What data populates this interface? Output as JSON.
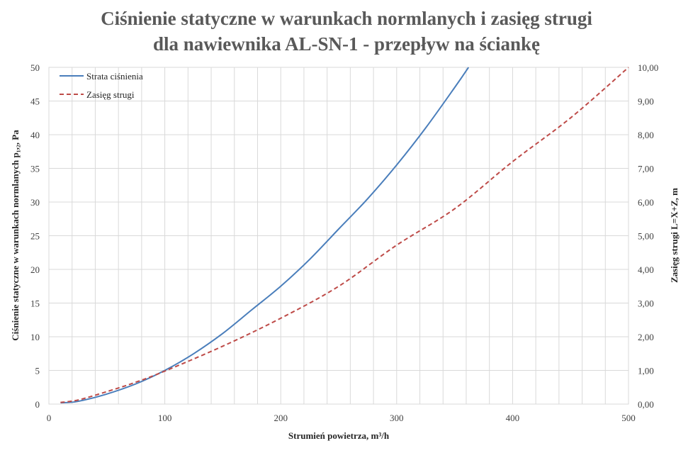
{
  "chart_data": {
    "type": "line",
    "title_line1": "Ciśnienie statyczne w warunkach  normlanych  i zasięg strugi",
    "title_line2": "dla nawiewnika  AL-SN-1 - przepływ  na ściankę",
    "xlabel": "Strumień  powietrza,  m³/h",
    "ylabel_left": "Ciśnienie statyczne w warunkach  normlanych  p₁,₂, Pa",
    "ylabel_right": "Zasięg strugi L=X+Z,  m",
    "xlim": [
      0,
      500
    ],
    "ylim_left": [
      0,
      50
    ],
    "ylim_right": [
      0,
      10
    ],
    "x_ticks": [
      "0",
      "100",
      "200",
      "300",
      "400",
      "500"
    ],
    "y_left_ticks": [
      "0",
      "5",
      "10",
      "15",
      "20",
      "25",
      "30",
      "35",
      "40",
      "45",
      "50"
    ],
    "y_right_ticks": [
      "0,00",
      "1,00",
      "2,00",
      "3,00",
      "4,00",
      "5,00",
      "6,00",
      "7,00",
      "8,00",
      "9,00",
      "10,00"
    ],
    "grid": true,
    "legend_position": "top-left",
    "series": [
      {
        "name": "Strata ciśnienia",
        "axis": "left",
        "color": "#4a7ebb",
        "style": "solid",
        "x": [
          10,
          25,
          50,
          75,
          100,
          125,
          150,
          175,
          200,
          225,
          250,
          275,
          300,
          325,
          350,
          362
        ],
        "y": [
          0.2,
          0.4,
          1.5,
          3.0,
          5.0,
          7.5,
          10.5,
          14.0,
          17.5,
          21.5,
          26.0,
          30.5,
          35.5,
          41.0,
          47.0,
          50.0
        ]
      },
      {
        "name": "Zasięg strugi",
        "axis": "right",
        "color": "#be4b48",
        "style": "dashed",
        "x": [
          10,
          25,
          50,
          75,
          100,
          150,
          200,
          250,
          300,
          350,
          400,
          450,
          500
        ],
        "y": [
          0.05,
          0.12,
          0.37,
          0.65,
          0.98,
          1.72,
          2.55,
          3.5,
          4.72,
          5.8,
          7.2,
          8.5,
          10.0
        ]
      }
    ]
  }
}
